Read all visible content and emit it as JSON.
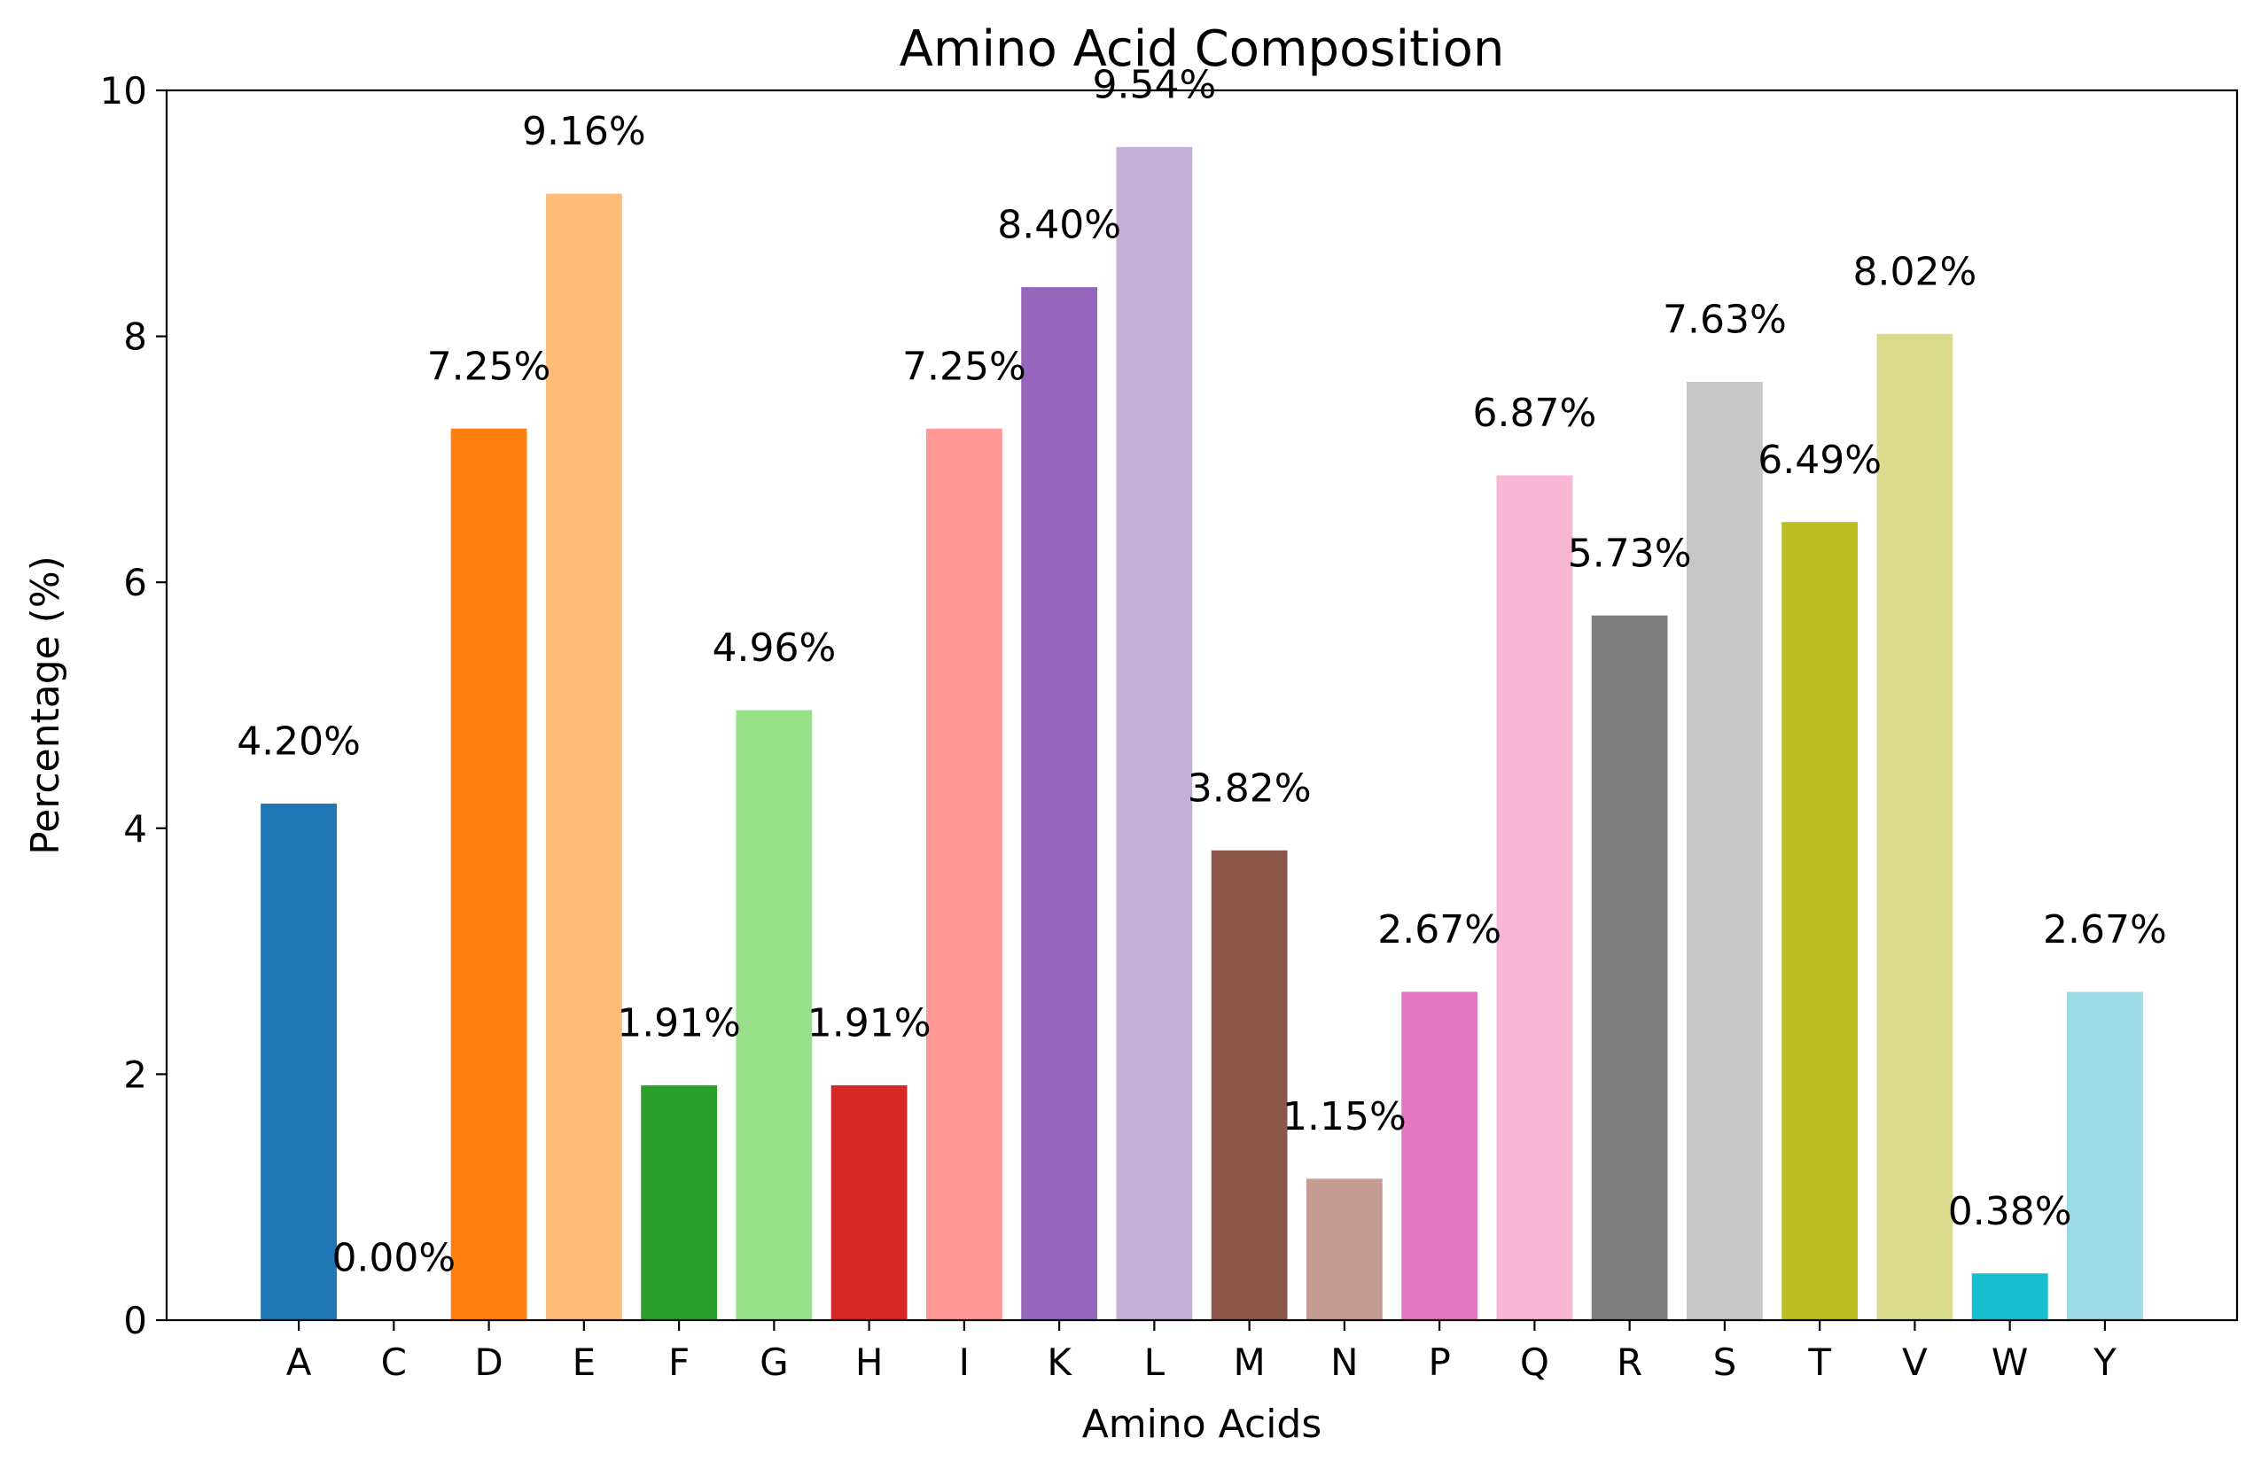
{
  "chart_data": {
    "type": "bar",
    "title": "Amino Acid Composition",
    "xlabel": "Amino Acids",
    "ylabel": "Percentage (%)",
    "categories": [
      "A",
      "C",
      "D",
      "E",
      "F",
      "G",
      "H",
      "I",
      "K",
      "L",
      "M",
      "N",
      "P",
      "Q",
      "R",
      "S",
      "T",
      "V",
      "W",
      "Y"
    ],
    "values": [
      4.2,
      0.0,
      7.25,
      9.16,
      1.91,
      4.96,
      1.91,
      7.25,
      8.4,
      9.54,
      3.82,
      1.15,
      2.67,
      6.87,
      5.73,
      7.63,
      6.49,
      8.02,
      0.38,
      2.67
    ],
    "data_labels": [
      "4.20%",
      "0.00%",
      "7.25%",
      "9.16%",
      "1.91%",
      "4.96%",
      "1.91%",
      "7.25%",
      "8.40%",
      "9.54%",
      "3.82%",
      "1.15%",
      "2.67%",
      "6.87%",
      "5.73%",
      "7.63%",
      "6.49%",
      "8.02%",
      "0.38%",
      "2.67%"
    ],
    "colors": [
      "#1f77b4",
      "#aec7e8",
      "#ff7f0e",
      "#ffbb78",
      "#2ca02c",
      "#98df8a",
      "#d62728",
      "#ff9896",
      "#9467bd",
      "#c5b0d5",
      "#8c564b",
      "#c49c94",
      "#e377c2",
      "#f7b6d2",
      "#7f7f7f",
      "#c7c7c7",
      "#bcbd22",
      "#dbdb8d",
      "#17becf",
      "#9edae5"
    ],
    "ylim": [
      0,
      10
    ],
    "yticks": [
      0,
      2,
      4,
      6,
      8,
      10
    ],
    "grid": false,
    "legend": "none"
  }
}
